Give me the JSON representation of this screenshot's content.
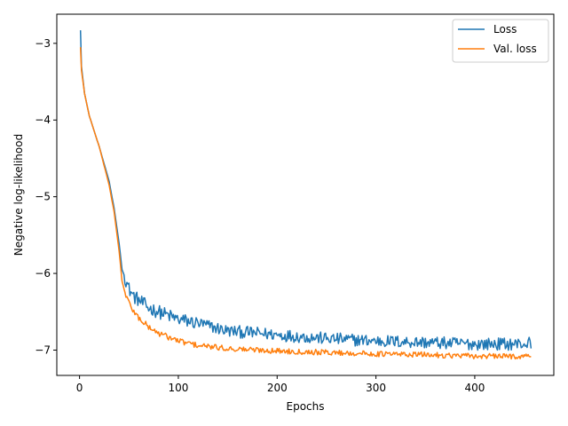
{
  "chart_data": {
    "type": "line",
    "title": "",
    "xlabel": "Epochs",
    "ylabel": "Negative log-likelihood",
    "xlim": [
      -23,
      480
    ],
    "ylim": [
      -7.33,
      -2.62
    ],
    "xticks": [
      0,
      100,
      200,
      300,
      400
    ],
    "yticks": [
      -3,
      -4,
      -5,
      -6,
      -7
    ],
    "ytick_labels": [
      "−3",
      "−4",
      "−5",
      "−6",
      "−7"
    ],
    "xtick_labels": [
      "0",
      "100",
      "200",
      "300",
      "400"
    ],
    "grid": false,
    "legend_position": "top-right",
    "series": [
      {
        "name": "Loss",
        "color": "#1f77b4",
        "noise": 0.09,
        "points": [
          [
            1,
            -2.83
          ],
          [
            2,
            -3.3
          ],
          [
            5,
            -3.65
          ],
          [
            10,
            -3.95
          ],
          [
            20,
            -4.35
          ],
          [
            30,
            -4.8
          ],
          [
            35,
            -5.15
          ],
          [
            40,
            -5.6
          ],
          [
            43,
            -5.95
          ],
          [
            46,
            -6.05
          ],
          [
            50,
            -6.2
          ],
          [
            55,
            -6.3
          ],
          [
            60,
            -6.35
          ],
          [
            70,
            -6.45
          ],
          [
            80,
            -6.5
          ],
          [
            100,
            -6.6
          ],
          [
            120,
            -6.65
          ],
          [
            150,
            -6.75
          ],
          [
            180,
            -6.78
          ],
          [
            200,
            -6.8
          ],
          [
            250,
            -6.85
          ],
          [
            300,
            -6.88
          ],
          [
            350,
            -6.9
          ],
          [
            400,
            -6.92
          ],
          [
            450,
            -6.92
          ],
          [
            457,
            -6.9
          ]
        ]
      },
      {
        "name": "Val. loss",
        "color": "#ff7f0e",
        "noise": 0.04,
        "points": [
          [
            1,
            -3.05
          ],
          [
            2,
            -3.35
          ],
          [
            5,
            -3.65
          ],
          [
            10,
            -3.95
          ],
          [
            20,
            -4.35
          ],
          [
            30,
            -4.85
          ],
          [
            35,
            -5.2
          ],
          [
            40,
            -5.7
          ],
          [
            43,
            -6.1
          ],
          [
            46,
            -6.25
          ],
          [
            50,
            -6.38
          ],
          [
            55,
            -6.5
          ],
          [
            60,
            -6.58
          ],
          [
            70,
            -6.7
          ],
          [
            80,
            -6.78
          ],
          [
            100,
            -6.88
          ],
          [
            120,
            -6.94
          ],
          [
            150,
            -6.98
          ],
          [
            200,
            -7.01
          ],
          [
            250,
            -7.03
          ],
          [
            300,
            -7.05
          ],
          [
            350,
            -7.06
          ],
          [
            400,
            -7.08
          ],
          [
            450,
            -7.08
          ],
          [
            457,
            -7.08
          ]
        ]
      }
    ]
  }
}
